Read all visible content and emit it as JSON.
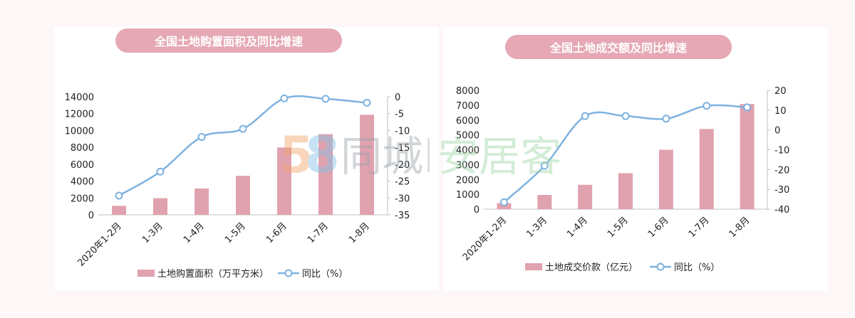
{
  "chart_data": [
    {
      "type": "bar",
      "title": "全国土地购置面积及同比增速",
      "categories": [
        "2020年1-2月",
        "1-3月",
        "1-4月",
        "1-5月",
        "1-6月",
        "1-7月",
        "1-8月"
      ],
      "series": [
        {
          "name": "土地购置面积（万平方米）",
          "type": "bar",
          "axis": "left",
          "values": [
            1066,
            1973,
            3120,
            4626,
            7987,
            9560,
            11861
          ]
        },
        {
          "name": "同比（%）",
          "type": "line",
          "axis": "right",
          "values": [
            -29.3,
            -22.2,
            -11.9,
            -9.5,
            -0.5,
            -0.6,
            -1.8
          ]
        }
      ],
      "ylim_left": [
        0,
        14000
      ],
      "yticks_left": [
        "0",
        "2000",
        "4000",
        "6000",
        "8000",
        "10000",
        "12000",
        "14000"
      ],
      "ylim_right": [
        -35,
        0
      ],
      "yticks_right": [
        "-35",
        "-30",
        "-25",
        "-20",
        "-15",
        "-10",
        "-5",
        "0"
      ],
      "bar_color": "#e0a2ae",
      "line_color": "#7eb2e0",
      "legend": "bottom"
    },
    {
      "type": "bar",
      "title": "全国土地成交额及同比增速",
      "categories": [
        "2020年1-2月",
        "1-3月",
        "1-4月",
        "1-5月",
        "1-6月",
        "1-7月",
        "1-8月"
      ],
      "series": [
        {
          "name": "土地成交价款（亿元）",
          "type": "bar",
          "axis": "left",
          "values": [
            400,
            960,
            1640,
            2420,
            4000,
            5400,
            7080
          ]
        },
        {
          "name": "同比（%）",
          "type": "line",
          "axis": "right",
          "values": [
            -36.5,
            -18.1,
            7.0,
            7.0,
            5.7,
            12.2,
            11.4
          ]
        }
      ],
      "ylim_left": [
        0,
        8000
      ],
      "yticks_left": [
        "0",
        "1000",
        "2000",
        "3000",
        "4000",
        "5000",
        "6000",
        "7000",
        "8000"
      ],
      "ylim_right": [
        -40,
        20
      ],
      "yticks_right": [
        "-40",
        "-30",
        "-20",
        "-10",
        "0",
        "10",
        "20"
      ],
      "bar_color": "#e0a2ae",
      "line_color": "#7eb2e0",
      "legend": "bottom"
    }
  ],
  "watermark": {
    "digits": "58",
    "brand1": "同城",
    "brand2": "安居客",
    "colors": [
      "#f2a66a",
      "#82c2e8",
      "#9ed6a6"
    ]
  }
}
